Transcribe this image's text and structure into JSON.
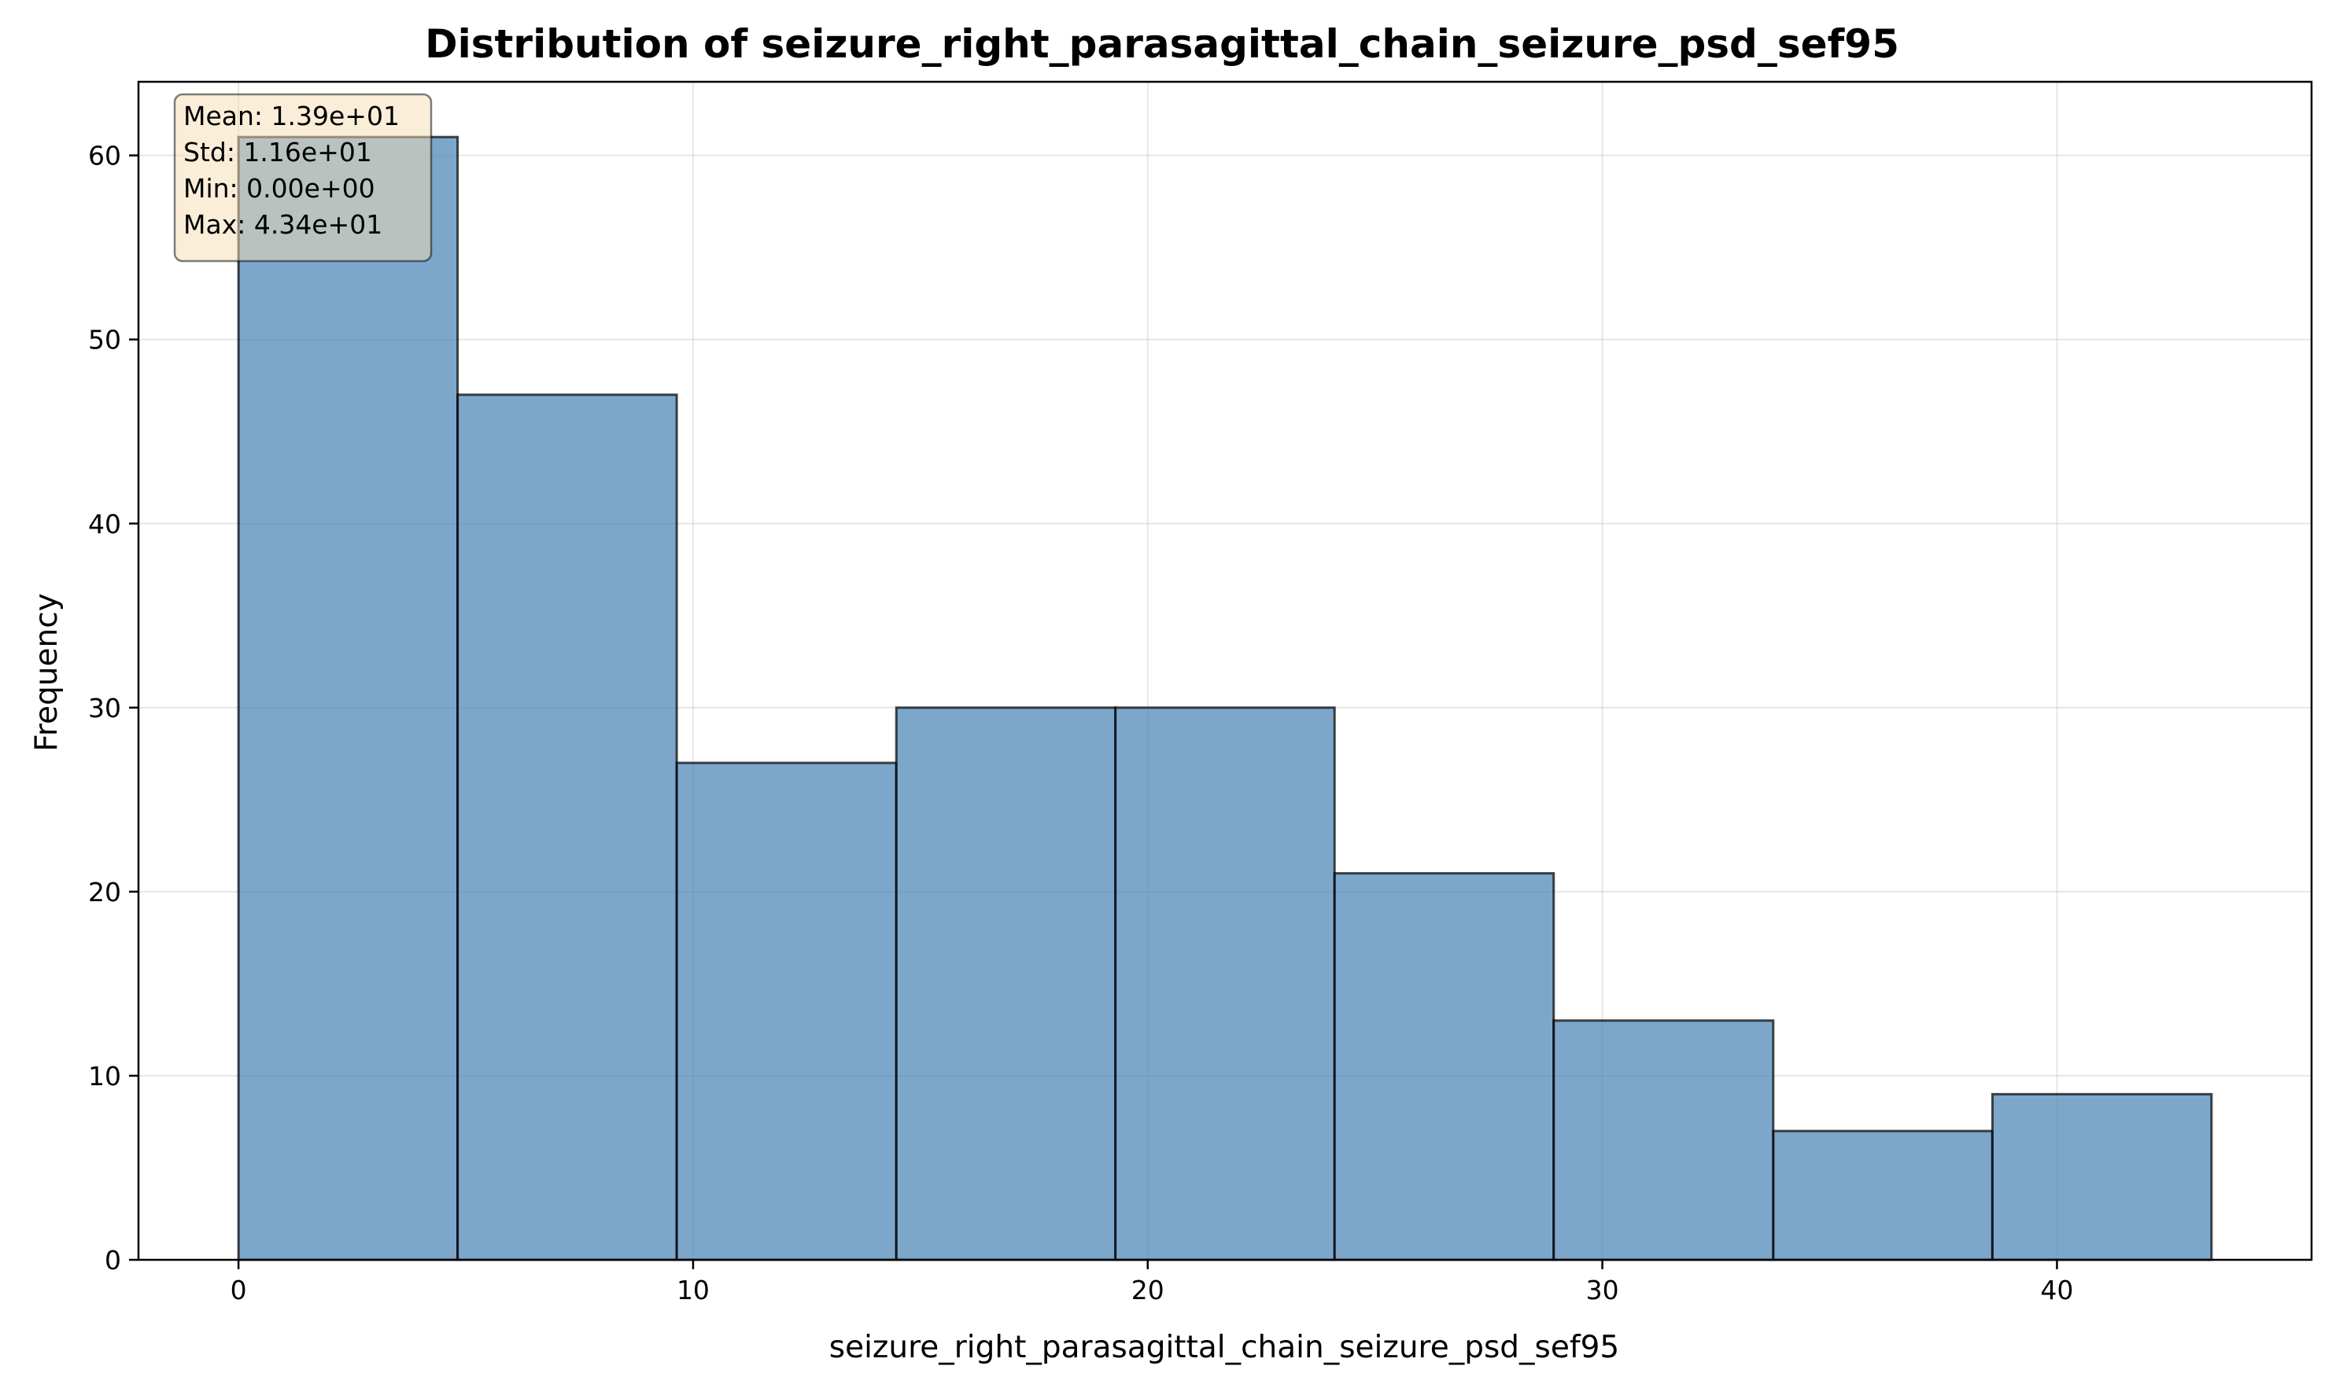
{
  "colors": {
    "bar_fill": "#4682b4",
    "bar_edge": "#000000",
    "grid": "#b0b0b0",
    "stats_box_fill": "#f5deb3",
    "stats_box_edge": "#000000"
  },
  "chart_data": {
    "type": "bar",
    "title": "Distribution of seizure_right_parasagittal_chain_seizure_psd_sef95",
    "xlabel": "seizure_right_parasagittal_chain_seizure_psd_sef95",
    "ylabel": "Frequency",
    "xlim": [
      -2.2,
      45.6
    ],
    "ylim": [
      0,
      64
    ],
    "x_ticks": [
      0,
      10,
      20,
      30,
      40
    ],
    "y_ticks": [
      0,
      10,
      20,
      30,
      40,
      50,
      60
    ],
    "grid": true,
    "bins": [
      {
        "x0": 0.0,
        "x1": 4.82,
        "count": 61
      },
      {
        "x0": 4.82,
        "x1": 9.64,
        "count": 47
      },
      {
        "x0": 9.64,
        "x1": 14.47,
        "count": 27
      },
      {
        "x0": 14.47,
        "x1": 19.29,
        "count": 30
      },
      {
        "x0": 19.29,
        "x1": 24.11,
        "count": 30
      },
      {
        "x0": 24.11,
        "x1": 28.93,
        "count": 21
      },
      {
        "x0": 28.93,
        "x1": 33.76,
        "count": 13
      },
      {
        "x0": 33.76,
        "x1": 38.58,
        "count": 7
      },
      {
        "x0": 38.58,
        "x1": 43.4,
        "count": 9
      }
    ],
    "stats_box": {
      "placement": "top-left",
      "lines": [
        "Mean: 1.39e+01",
        "Std: 1.16e+01",
        "Min: 0.00e+00",
        "Max: 4.34e+01"
      ]
    }
  }
}
